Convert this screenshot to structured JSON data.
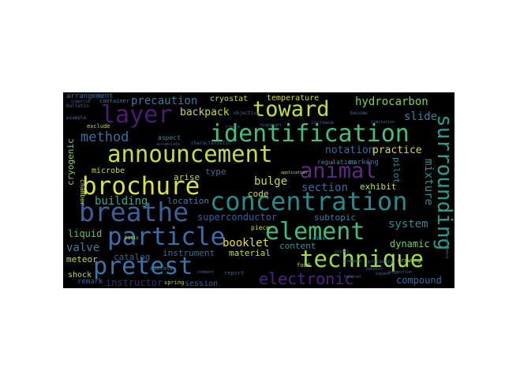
{
  "wordcloud": {
    "words": [
      {
        "text": "breathe",
        "color": "#3f5f9a"
      },
      {
        "text": "concentration",
        "color": "#2a8a8a"
      },
      {
        "text": "announcement",
        "color": "#bde04a"
      },
      {
        "text": "identification",
        "color": "#44c07a"
      },
      {
        "text": "brochure",
        "color": "#d8e14a"
      },
      {
        "text": "particle",
        "color": "#3c6ea8"
      },
      {
        "text": "element",
        "color": "#3fbe7b"
      },
      {
        "text": "technique",
        "color": "#9fd94d"
      },
      {
        "text": "pretest",
        "color": "#3d75a6"
      },
      {
        "text": "surrounding",
        "color": "#2d9c8c"
      },
      {
        "text": "animal",
        "color": "#5a2e7e"
      },
      {
        "text": "toward",
        "color": "#c2df3d"
      },
      {
        "text": "layer",
        "color": "#4a1e6e"
      },
      {
        "text": "electronic",
        "color": "#4d2480"
      },
      {
        "text": "method",
        "color": "#3a6f9b"
      },
      {
        "text": "hydrocarbon",
        "color": "#7fd34e"
      },
      {
        "text": "precaution",
        "color": "#3b7a9a"
      },
      {
        "text": "mixture",
        "color": "#2f8e8c"
      },
      {
        "text": "backpack",
        "color": "#c9d84a"
      },
      {
        "text": "booklet",
        "color": "#e4e236"
      },
      {
        "text": "notation",
        "color": "#3d689b"
      },
      {
        "text": "practice",
        "color": "#d8db3a"
      },
      {
        "text": "slide",
        "color": "#3b7fa0"
      },
      {
        "text": "section",
        "color": "#3c6aa0"
      },
      {
        "text": "bulge",
        "color": "#c4d94b"
      },
      {
        "text": "system",
        "color": "#2e8b8c"
      },
      {
        "text": "building",
        "color": "#3fa48a"
      },
      {
        "text": "superconductor",
        "color": "#3a5f98"
      },
      {
        "text": "valve",
        "color": "#3e7ca0"
      },
      {
        "text": "liquid",
        "color": "#5bc26b"
      },
      {
        "text": "instrument",
        "color": "#3d6b9c"
      },
      {
        "text": "material",
        "color": "#c2de3e"
      },
      {
        "text": "content",
        "color": "#3a8f98"
      },
      {
        "text": "dynamic",
        "color": "#77d050"
      },
      {
        "text": "compound",
        "color": "#3c6aa0"
      },
      {
        "text": "exhibit",
        "color": "#c8de43"
      },
      {
        "text": "subtopic",
        "color": "#3d7ba0"
      },
      {
        "text": "cryogenic",
        "color": "#86d24c"
      },
      {
        "text": "microbe",
        "color": "#c6de3f"
      },
      {
        "text": "code",
        "color": "#d7dd3d"
      },
      {
        "text": "location",
        "color": "#3f7da0"
      },
      {
        "text": "catalog",
        "color": "#3b5e98"
      },
      {
        "text": "meteor",
        "color": "#c4d94b"
      },
      {
        "text": "shock",
        "color": "#b9da45"
      },
      {
        "text": "remark",
        "color": "#3f5f9a"
      },
      {
        "text": "instructor",
        "color": "#3d2d70"
      },
      {
        "text": "session",
        "color": "#3f5f9a"
      },
      {
        "text": "temperature",
        "color": "#d2dc3c"
      },
      {
        "text": "cryostat",
        "color": "#c6d94a"
      },
      {
        "text": "arrangement",
        "color": "#3c6ea0"
      },
      {
        "text": "container",
        "color": "#3d7fa0"
      },
      {
        "text": "type",
        "color": "#3d6a9c"
      },
      {
        "text": "arise",
        "color": "#b7d946"
      },
      {
        "text": "chamber",
        "color": "#c0d942"
      },
      {
        "text": "aspect",
        "color": "#3b8a98"
      },
      {
        "text": "regulation",
        "color": "#3a8c96"
      },
      {
        "text": "marking",
        "color": "#3e70a0"
      },
      {
        "text": "pilot",
        "color": "#2f8e8c"
      },
      {
        "text": "piece",
        "color": "#c7dd3e"
      },
      {
        "text": "bulletin",
        "color": "#3e6aa0"
      },
      {
        "text": "example",
        "color": "#3d6a9c"
      },
      {
        "text": "exclude",
        "color": "#c4d94b"
      },
      {
        "text": "operate",
        "color": "#3d7fa0"
      },
      {
        "text": "basic",
        "color": "#c7dd3e"
      },
      {
        "text": "report",
        "color": "#3d5a98"
      },
      {
        "text": "food",
        "color": "#c7dd3e"
      },
      {
        "text": "disk",
        "color": "#3d7fa0"
      },
      {
        "text": "drawing",
        "color": "#c0d942"
      },
      {
        "text": "spring",
        "color": "#c4d94b"
      },
      {
        "text": "comprise",
        "color": "#5a5a8a"
      },
      {
        "text": "accumulate",
        "color": "#3d6a9c"
      },
      {
        "text": "characteristic",
        "color": "#3d6a9c"
      },
      {
        "text": "objective",
        "color": "#3d6a9c"
      },
      {
        "text": "application",
        "color": "#c7dd3e"
      },
      {
        "text": "increase",
        "color": "#3d6a9c"
      },
      {
        "text": "become",
        "color": "#3d6a9c"
      },
      {
        "text": "procedure",
        "color": "#3d6a9c"
      },
      {
        "text": "hundred",
        "color": "#3d6a9c"
      },
      {
        "text": "suggestion",
        "color": "#3d6a9c"
      },
      {
        "text": "requirement",
        "color": "#3d6a9c"
      },
      {
        "text": "limitation",
        "color": "#3d6a9c"
      },
      {
        "text": "highlight",
        "color": "#3d6a9c"
      },
      {
        "text": "comment",
        "color": "#3d6a9c"
      },
      {
        "text": "standard",
        "color": "#3d6a9c"
      },
      {
        "text": "handler",
        "color": "#3d6a9c"
      },
      {
        "text": "expand",
        "color": "#3d6a9c"
      },
      {
        "text": "vessel",
        "color": "#3d6a9c"
      },
      {
        "text": "create",
        "color": "#3d6a9c"
      }
    ]
  }
}
